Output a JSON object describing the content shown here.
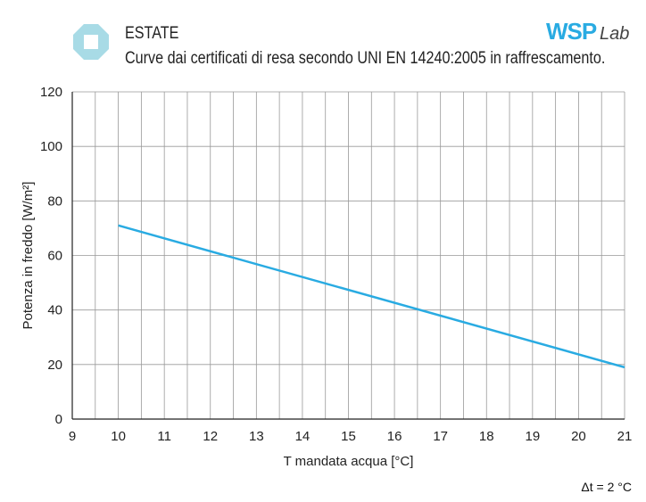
{
  "header": {
    "title": "ESTATE",
    "subtitle": "Curve dai certificati di resa secondo UNI EN 14240:2005 in raffrescamento.",
    "brand": "WSPLab",
    "logo_icon": "octagon-badge-icon"
  },
  "note": "Δt = 2 °C",
  "colors": {
    "line": "#29abe2",
    "logo": "#a8dbe6",
    "brand": "#29abe2"
  },
  "chart_data": {
    "type": "line",
    "title": "",
    "xlabel": "T mandata acqua [°C]",
    "ylabel": "Potenza in freddo [W/m²]",
    "xlim": [
      9,
      21
    ],
    "ylim": [
      0,
      120
    ],
    "grid": true,
    "xticks": [
      9,
      10,
      11,
      12,
      13,
      14,
      15,
      16,
      17,
      18,
      19,
      20,
      21
    ],
    "yticks": [
      0,
      20,
      40,
      60,
      80,
      100,
      120
    ],
    "series": [
      {
        "x": [
          10,
          21
        ],
        "y": [
          71,
          19
        ]
      }
    ]
  }
}
